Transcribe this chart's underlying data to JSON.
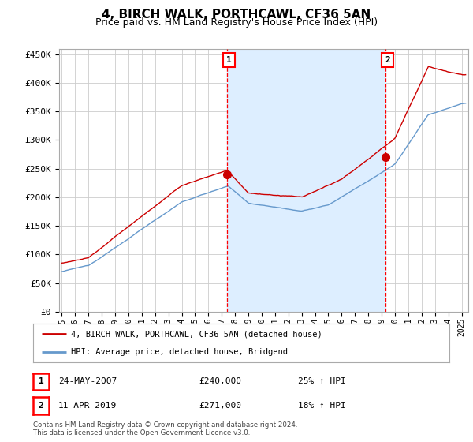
{
  "title": "4, BIRCH WALK, PORTHCAWL, CF36 5AN",
  "subtitle": "Price paid vs. HM Land Registry's House Price Index (HPI)",
  "title_fontsize": 11,
  "subtitle_fontsize": 9,
  "ylabel_ticks": [
    "£0",
    "£50K",
    "£100K",
    "£150K",
    "£200K",
    "£250K",
    "£300K",
    "£350K",
    "£400K",
    "£450K"
  ],
  "ytick_values": [
    0,
    50000,
    100000,
    150000,
    200000,
    250000,
    300000,
    350000,
    400000,
    450000
  ],
  "ylim": [
    0,
    460000
  ],
  "xlim_start": 1994.8,
  "xlim_end": 2025.5,
  "background_color": "#ffffff",
  "plot_bg_color": "#ffffff",
  "grid_color": "#cccccc",
  "red_color": "#cc0000",
  "blue_color": "#6699cc",
  "shade_color": "#ddeeff",
  "marker1_date": 2007.39,
  "marker2_date": 2019.28,
  "marker1_value": 240000,
  "marker2_value": 271000,
  "legend_label1": "4, BIRCH WALK, PORTHCAWL, CF36 5AN (detached house)",
  "legend_label2": "HPI: Average price, detached house, Bridgend",
  "annotation1_label": "1",
  "annotation2_label": "2",
  "table_row1": [
    "1",
    "24-MAY-2007",
    "£240,000",
    "25% ↑ HPI"
  ],
  "table_row2": [
    "2",
    "11-APR-2019",
    "£271,000",
    "18% ↑ HPI"
  ],
  "footer": "Contains HM Land Registry data © Crown copyright and database right 2024.\nThis data is licensed under the Open Government Licence v3.0.",
  "xtick_years": [
    1995,
    1996,
    1997,
    1998,
    1999,
    2000,
    2001,
    2002,
    2003,
    2004,
    2005,
    2006,
    2007,
    2008,
    2009,
    2010,
    2011,
    2012,
    2013,
    2014,
    2015,
    2016,
    2017,
    2018,
    2019,
    2020,
    2021,
    2022,
    2023,
    2024,
    2025
  ]
}
